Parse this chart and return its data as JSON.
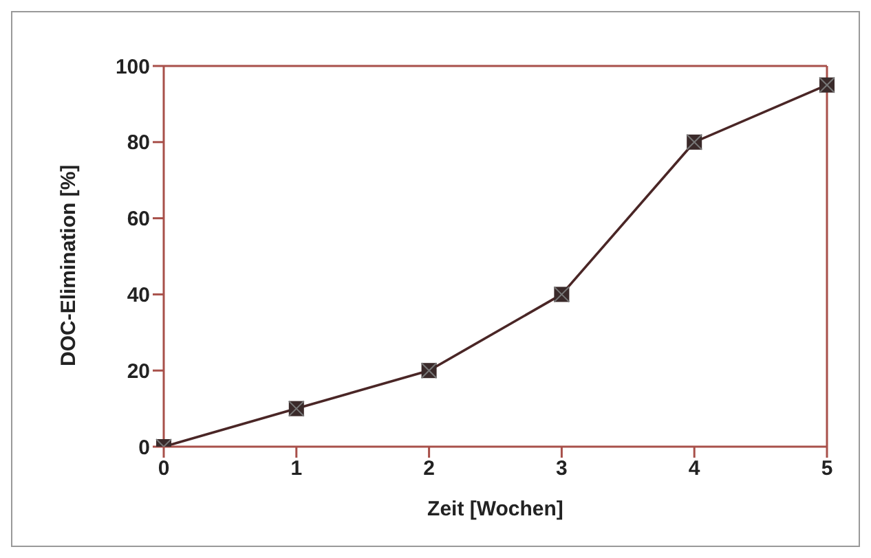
{
  "chart_data": {
    "type": "line",
    "xlabel": "Zeit [Wochen]",
    "ylabel": "DOC-Elimination [%]",
    "x": [
      0,
      1,
      2,
      3,
      4,
      5
    ],
    "series": [
      {
        "color": "#4a2626",
        "values": [
          0,
          10,
          20,
          40,
          80,
          95
        ]
      }
    ],
    "xlim": [
      0,
      5
    ],
    "xticks": [
      0,
      1,
      2,
      3,
      4,
      5
    ],
    "ylim": [
      0,
      100
    ],
    "yticks": [
      0,
      20,
      40,
      60,
      80,
      100
    ],
    "marker": "square",
    "line_style": "solid"
  }
}
